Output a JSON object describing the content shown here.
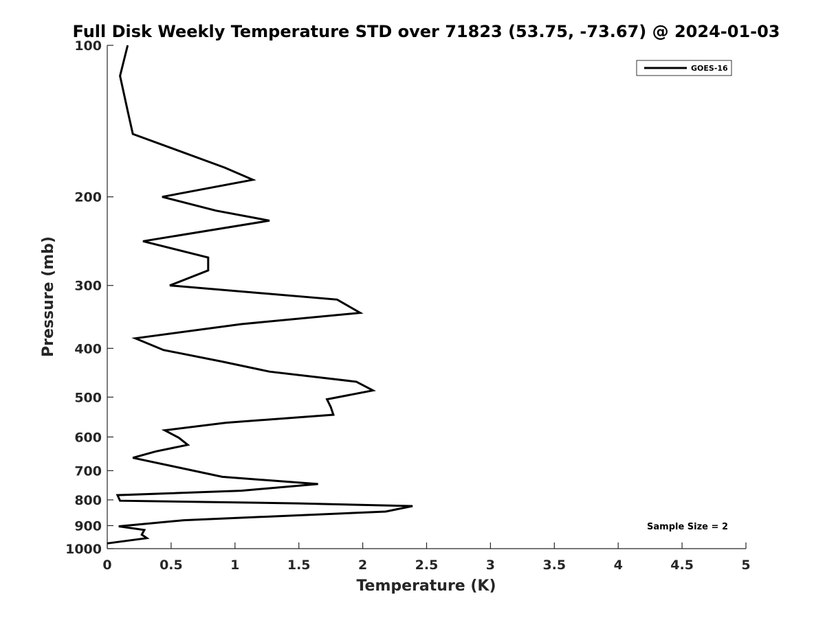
{
  "chart_data": {
    "type": "line",
    "title": "Full Disk Weekly Temperature STD over 71823 (53.75, -73.67) @ 2024-01-03",
    "xlabel": "Temperature (K)",
    "ylabel": "Pressure (mb)",
    "xlim": [
      0,
      5
    ],
    "ylim": [
      100,
      1000
    ],
    "y_scale": "log",
    "y_reversed": true,
    "x_ticks": [
      0,
      0.5,
      1,
      1.5,
      2,
      2.5,
      3,
      3.5,
      4,
      4.5,
      5
    ],
    "x_tick_labels": [
      "0",
      "0.5",
      "1",
      "1.5",
      "2",
      "2.5",
      "3",
      "3.5",
      "4",
      "4.5",
      "5"
    ],
    "y_ticks": [
      100,
      200,
      300,
      400,
      500,
      600,
      700,
      800,
      900,
      1000
    ],
    "y_tick_labels": [
      "100",
      "200",
      "300",
      "400",
      "500",
      "600",
      "700",
      "800",
      "900",
      "1000"
    ],
    "grid": false,
    "legend_position": "top-right",
    "annotation": "Sample Size = 2",
    "series": [
      {
        "name": "GOES-16",
        "color": "#000000",
        "points": [
          [
            0.16,
            100
          ],
          [
            0.1,
            115
          ],
          [
            0.16,
            135
          ],
          [
            0.2,
            150
          ],
          [
            0.92,
            175
          ],
          [
            1.14,
            185
          ],
          [
            0.43,
            200
          ],
          [
            0.85,
            213
          ],
          [
            1.27,
            223
          ],
          [
            0.28,
            245
          ],
          [
            0.79,
            264
          ],
          [
            0.79,
            280
          ],
          [
            0.49,
            300
          ],
          [
            1.8,
            320
          ],
          [
            1.98,
            340
          ],
          [
            1.05,
            358
          ],
          [
            0.22,
            382
          ],
          [
            0.44,
            403
          ],
          [
            0.9,
            425
          ],
          [
            1.27,
            445
          ],
          [
            1.95,
            466
          ],
          [
            2.08,
            485
          ],
          [
            1.72,
            505
          ],
          [
            1.75,
            523
          ],
          [
            1.77,
            542
          ],
          [
            0.93,
            562
          ],
          [
            0.45,
            582
          ],
          [
            0.56,
            602
          ],
          [
            0.63,
            622
          ],
          [
            0.38,
            641
          ],
          [
            0.2,
            660
          ],
          [
            0.56,
            690
          ],
          [
            0.9,
            720
          ],
          [
            1.65,
            744
          ],
          [
            1.05,
            767
          ],
          [
            0.08,
            783
          ],
          [
            0.1,
            803
          ],
          [
            1.5,
            813
          ],
          [
            2.39,
            823
          ],
          [
            2.18,
            844
          ],
          [
            0.6,
            878
          ],
          [
            0.09,
            903
          ],
          [
            0.29,
            918
          ],
          [
            0.27,
            938
          ],
          [
            0.31,
            953
          ],
          [
            0.0,
            976
          ]
        ]
      }
    ]
  }
}
